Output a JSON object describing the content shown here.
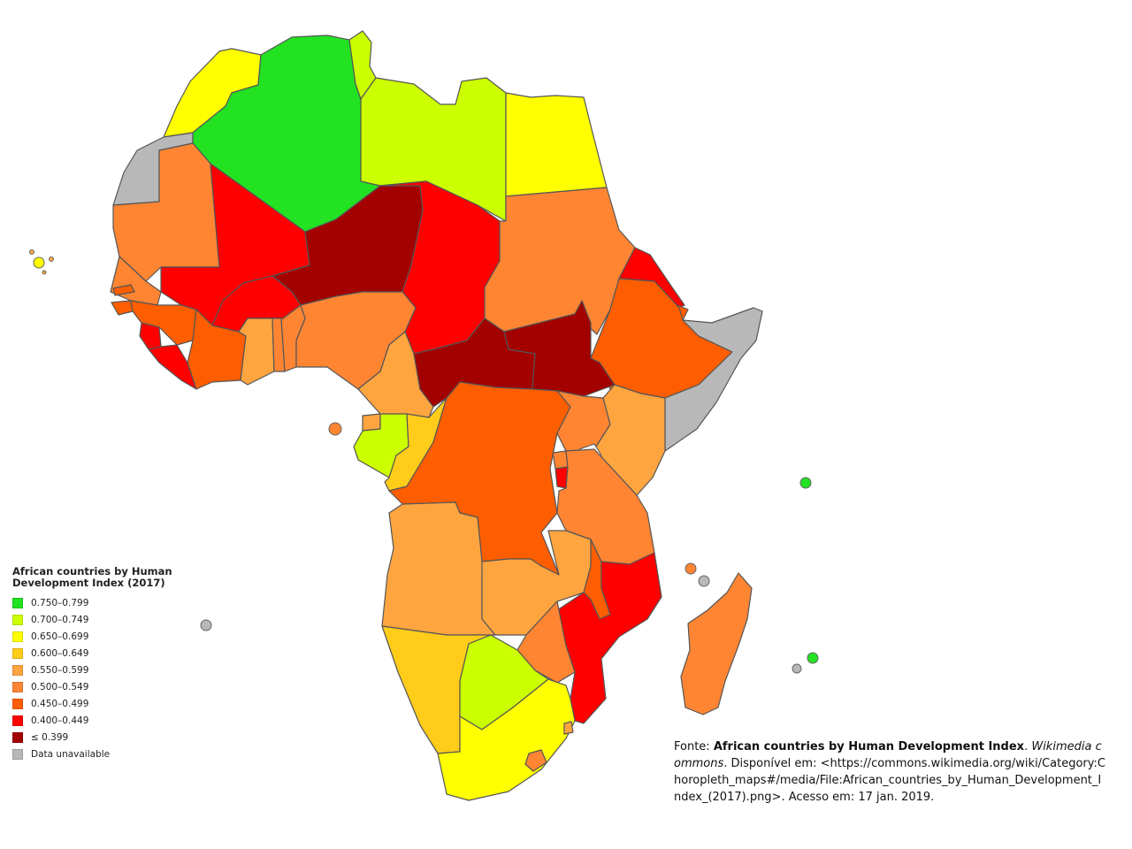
{
  "legend": {
    "title": "African countries by Human Development Index (2017)",
    "items": [
      {
        "label": "0.750–0.799",
        "color": "#22e222"
      },
      {
        "label": "0.700–0.749",
        "color": "#ccff00"
      },
      {
        "label": "0.650–0.699",
        "color": "#ffff00"
      },
      {
        "label": "0.600–0.649",
        "color": "#ffcc1a"
      },
      {
        "label": "0.550–0.599",
        "color": "#ffa540"
      },
      {
        "label": "0.500–0.549",
        "color": "#ff8533"
      },
      {
        "label": "0.450–0.499",
        "color": "#ff5e00"
      },
      {
        "label": "0.400–0.449",
        "color": "#ff0000"
      },
      {
        "label": "≤ 0.399",
        "color": "#a30000"
      },
      {
        "label": "Data unavailable",
        "color": "#b8b8b8"
      }
    ]
  },
  "source": {
    "prefix": "Fonte: ",
    "title": "African countries by Human Development Index",
    "sep1": ". ",
    "publisher": "Wikimedia commons",
    "rest": ". Disponível em: <https://commons.wikimedia.org/wiki/Category:Choropleth_maps#/media/File:African_countries_by_Human_Development_Index_(2017).png>. Acesso em: 17 jan. 2019."
  }
}
